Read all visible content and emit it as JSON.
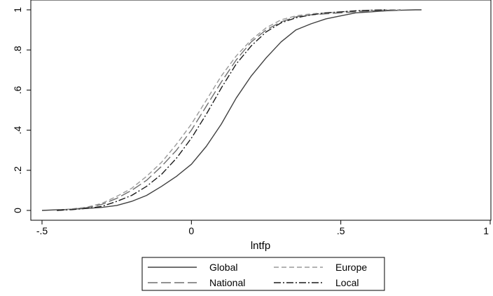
{
  "chart_data": {
    "type": "line",
    "title": "",
    "xlabel": "lntfp",
    "ylabel": "",
    "xlim": [
      -0.5,
      1
    ],
    "ylim": [
      0,
      1
    ],
    "x_ticks": [
      {
        "value": -0.5,
        "label": "-.5"
      },
      {
        "value": 0,
        "label": "0"
      },
      {
        "value": 0.5,
        "label": ".5"
      },
      {
        "value": 1,
        "label": "1"
      }
    ],
    "y_ticks": [
      {
        "value": 0,
        "label": "0"
      },
      {
        "value": 0.2,
        "label": ".2"
      },
      {
        "value": 0.4,
        "label": ".4"
      },
      {
        "value": 0.6,
        "label": ".6"
      },
      {
        "value": 0.8,
        "label": ".8"
      },
      {
        "value": 1,
        "label": "1"
      }
    ],
    "grid": false,
    "legend_position": "bottom",
    "series": [
      {
        "name": "Global",
        "color": "#404040",
        "dash": "solid",
        "x": [
          -0.5,
          -0.45,
          -0.4,
          -0.35,
          -0.3,
          -0.25,
          -0.2,
          -0.15,
          -0.1,
          -0.05,
          0,
          0.05,
          0.1,
          0.15,
          0.2,
          0.25,
          0.3,
          0.35,
          0.4,
          0.45,
          0.5,
          0.55,
          0.6,
          0.65,
          0.7,
          0.75,
          0.77
        ],
        "y": [
          0,
          0.003,
          0.006,
          0.01,
          0.015,
          0.025,
          0.045,
          0.075,
          0.12,
          0.17,
          0.23,
          0.32,
          0.43,
          0.56,
          0.67,
          0.76,
          0.84,
          0.9,
          0.93,
          0.955,
          0.97,
          0.985,
          0.99,
          0.995,
          0.998,
          1.0,
          1.0
        ]
      },
      {
        "name": "Europe",
        "color": "#9a9a9a",
        "dash": "short-dash",
        "x": [
          -0.45,
          -0.4,
          -0.35,
          -0.3,
          -0.25,
          -0.2,
          -0.15,
          -0.1,
          -0.05,
          0,
          0.05,
          0.1,
          0.15,
          0.2,
          0.25,
          0.3,
          0.35,
          0.4,
          0.45,
          0.5,
          0.55,
          0.6,
          0.65,
          0.7
        ],
        "y": [
          0,
          0.008,
          0.016,
          0.035,
          0.07,
          0.11,
          0.17,
          0.24,
          0.33,
          0.43,
          0.55,
          0.67,
          0.77,
          0.85,
          0.91,
          0.95,
          0.97,
          0.98,
          0.985,
          0.99,
          0.995,
          0.998,
          1.0,
          1.0
        ]
      },
      {
        "name": "National",
        "color": "#6e6e6e",
        "dash": "long-dash",
        "x": [
          -0.45,
          -0.4,
          -0.35,
          -0.3,
          -0.25,
          -0.2,
          -0.15,
          -0.1,
          -0.05,
          0,
          0.05,
          0.1,
          0.15,
          0.2,
          0.25,
          0.3,
          0.35,
          0.4,
          0.45,
          0.5,
          0.55,
          0.6,
          0.65,
          0.7
        ],
        "y": [
          0,
          0.006,
          0.014,
          0.03,
          0.06,
          0.1,
          0.15,
          0.22,
          0.3,
          0.4,
          0.52,
          0.64,
          0.75,
          0.84,
          0.9,
          0.94,
          0.965,
          0.975,
          0.98,
          0.985,
          0.99,
          0.995,
          0.998,
          1.0
        ]
      },
      {
        "name": "Local",
        "color": "#1a1a1a",
        "dash": "dash-dot",
        "x": [
          -0.45,
          -0.4,
          -0.35,
          -0.3,
          -0.25,
          -0.2,
          -0.15,
          -0.1,
          -0.05,
          0,
          0.05,
          0.1,
          0.15,
          0.2,
          0.25,
          0.3,
          0.35,
          0.4,
          0.45,
          0.5,
          0.55,
          0.6,
          0.65
        ],
        "y": [
          0,
          0.004,
          0.01,
          0.02,
          0.045,
          0.075,
          0.12,
          0.18,
          0.26,
          0.36,
          0.48,
          0.61,
          0.73,
          0.82,
          0.89,
          0.935,
          0.96,
          0.975,
          0.985,
          0.99,
          0.995,
          0.998,
          1.0
        ]
      }
    ]
  }
}
